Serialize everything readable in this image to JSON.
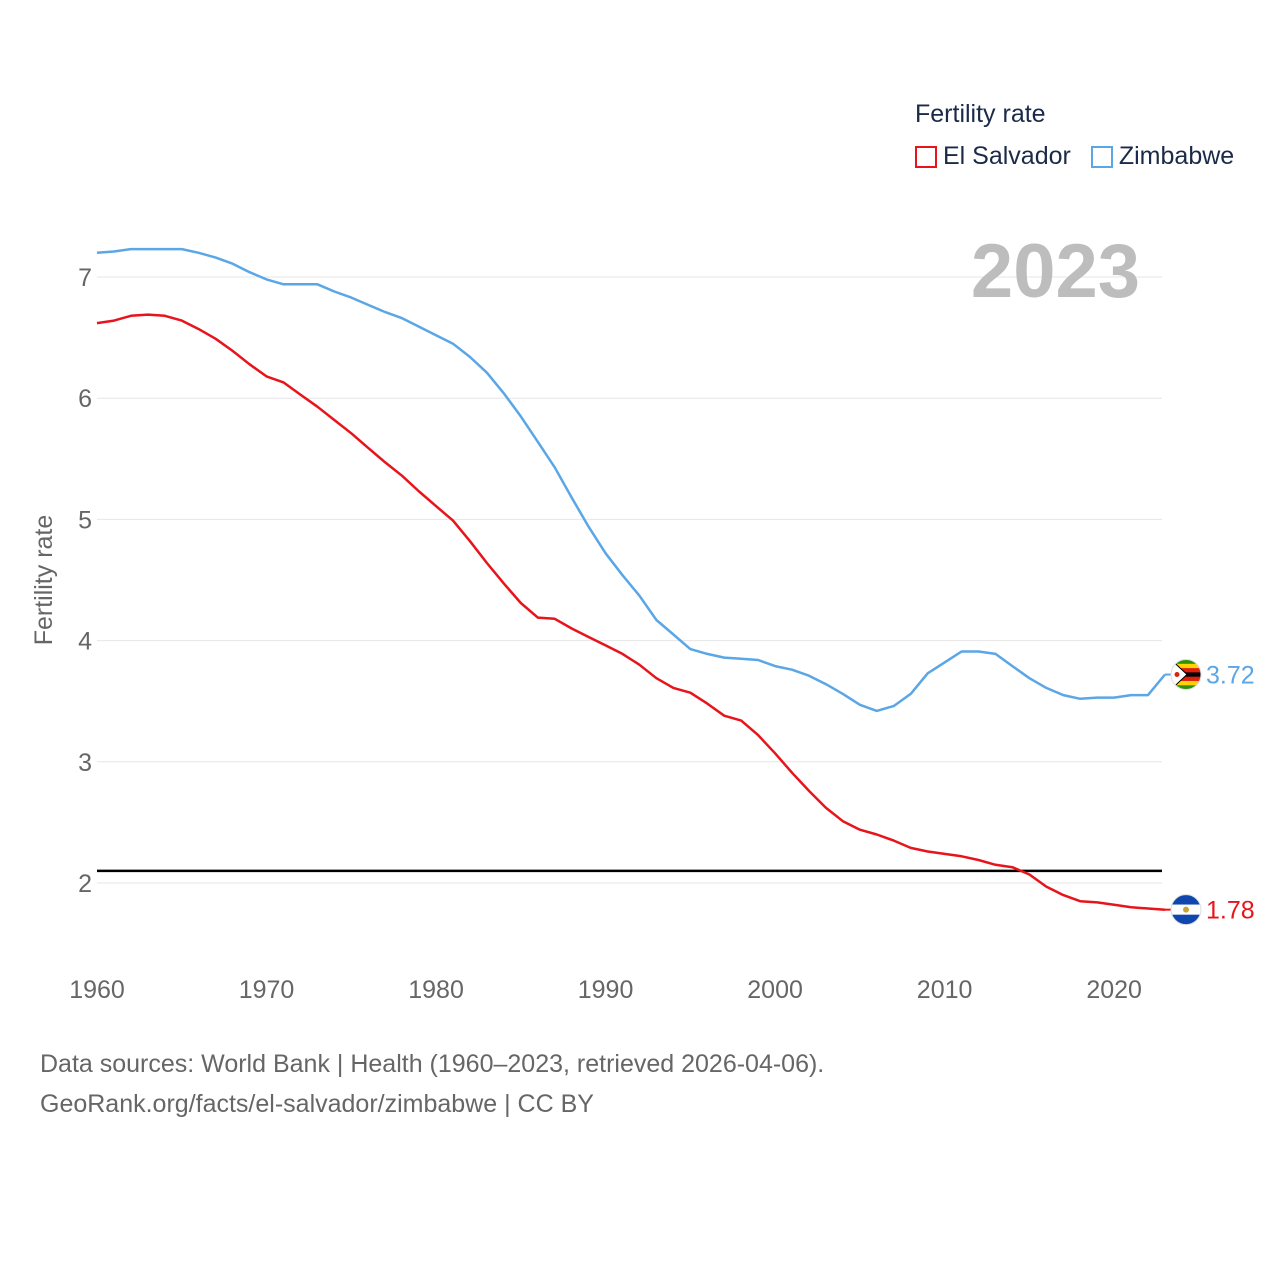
{
  "legend": {
    "title": "Fertility rate",
    "items": [
      {
        "label": "El Salvador",
        "color": "#e8141b"
      },
      {
        "label": "Zimbabwe",
        "color": "#5aa6e6"
      }
    ]
  },
  "year_label": "2023",
  "footer": {
    "line1": "Data sources: World Bank | Health (1960–2023, retrieved 2026-04-06).",
    "line2": "GeoRank.org/facts/el-salvador/zimbabwe | CC BY"
  },
  "chart_data": {
    "type": "line",
    "title": "Fertility rate",
    "xlabel": "",
    "ylabel": "Fertility rate",
    "xlim": [
      1960,
      2023
    ],
    "ylim": [
      1.4,
      7.5
    ],
    "xticks": [
      1960,
      1970,
      1980,
      1990,
      2000,
      2010,
      2020
    ],
    "yticks": [
      2,
      3,
      4,
      5,
      6,
      7
    ],
    "reference_line": {
      "y": 2.1,
      "color": "#000000"
    },
    "series": [
      {
        "name": "El Salvador",
        "color": "#e8141b",
        "end_label": "1.78",
        "icon": "el-salvador-flag-icon",
        "x": [
          1960,
          1961,
          1962,
          1963,
          1964,
          1965,
          1966,
          1967,
          1968,
          1969,
          1970,
          1971,
          1972,
          1973,
          1974,
          1975,
          1976,
          1977,
          1978,
          1979,
          1980,
          1981,
          1982,
          1983,
          1984,
          1985,
          1986,
          1987,
          1988,
          1989,
          1990,
          1991,
          1992,
          1993,
          1994,
          1995,
          1996,
          1997,
          1998,
          1999,
          2000,
          2001,
          2002,
          2003,
          2004,
          2005,
          2006,
          2007,
          2008,
          2009,
          2010,
          2011,
          2012,
          2013,
          2014,
          2015,
          2016,
          2017,
          2018,
          2019,
          2020,
          2021,
          2022,
          2023
        ],
        "y": [
          6.62,
          6.64,
          6.68,
          6.69,
          6.68,
          6.64,
          6.57,
          6.49,
          6.39,
          6.28,
          6.18,
          6.13,
          6.03,
          5.93,
          5.82,
          5.71,
          5.59,
          5.47,
          5.36,
          5.23,
          5.11,
          4.99,
          4.82,
          4.64,
          4.47,
          4.31,
          4.19,
          4.18,
          4.1,
          4.03,
          3.96,
          3.89,
          3.8,
          3.69,
          3.61,
          3.57,
          3.48,
          3.38,
          3.34,
          3.22,
          3.07,
          2.91,
          2.76,
          2.62,
          2.51,
          2.44,
          2.4,
          2.35,
          2.29,
          2.26,
          2.24,
          2.22,
          2.19,
          2.15,
          2.13,
          2.07,
          1.97,
          1.9,
          1.85,
          1.84,
          1.82,
          1.8,
          1.79,
          1.78
        ]
      },
      {
        "name": "Zimbabwe",
        "color": "#5aa6e6",
        "end_label": "3.72",
        "icon": "zimbabwe-flag-icon",
        "x": [
          1960,
          1961,
          1962,
          1963,
          1964,
          1965,
          1966,
          1967,
          1968,
          1969,
          1970,
          1971,
          1972,
          1973,
          1974,
          1975,
          1976,
          1977,
          1978,
          1979,
          1980,
          1981,
          1982,
          1983,
          1984,
          1985,
          1986,
          1987,
          1988,
          1989,
          1990,
          1991,
          1992,
          1993,
          1994,
          1995,
          1996,
          1997,
          1998,
          1999,
          2000,
          2001,
          2002,
          2003,
          2004,
          2005,
          2006,
          2007,
          2008,
          2009,
          2010,
          2011,
          2012,
          2013,
          2014,
          2015,
          2016,
          2017,
          2018,
          2019,
          2020,
          2021,
          2022,
          2023
        ],
        "y": [
          7.2,
          7.21,
          7.23,
          7.23,
          7.23,
          7.23,
          7.2,
          7.16,
          7.11,
          7.04,
          6.98,
          6.94,
          6.94,
          6.94,
          6.88,
          6.83,
          6.77,
          6.71,
          6.66,
          6.59,
          6.52,
          6.45,
          6.34,
          6.21,
          6.04,
          5.85,
          5.64,
          5.43,
          5.18,
          4.94,
          4.72,
          4.54,
          4.37,
          4.17,
          4.05,
          3.93,
          3.89,
          3.86,
          3.85,
          3.84,
          3.79,
          3.76,
          3.71,
          3.64,
          3.56,
          3.47,
          3.42,
          3.46,
          3.56,
          3.73,
          3.82,
          3.91,
          3.91,
          3.89,
          3.79,
          3.69,
          3.61,
          3.55,
          3.52,
          3.53,
          3.53,
          3.55,
          3.55,
          3.72
        ]
      }
    ]
  }
}
